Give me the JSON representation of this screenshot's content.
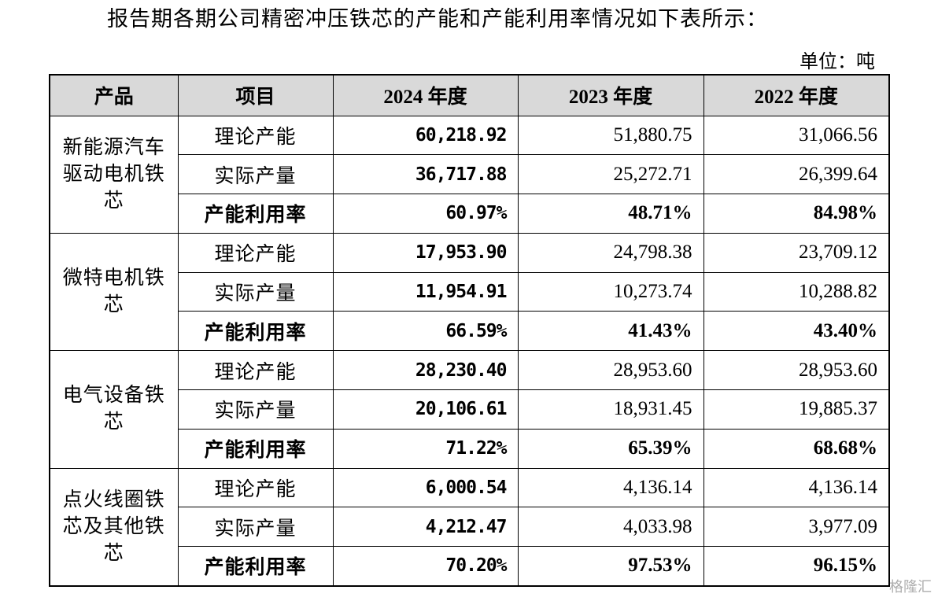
{
  "intro": "报告期各期公司精密冲压铁芯的产能和产能利用率情况如下表所示：",
  "unit": "单位：吨",
  "table": {
    "header": [
      "产品",
      "项目",
      "2024 年度",
      "2023 年度",
      "2022 年度"
    ],
    "groups": [
      {
        "product": "新能源汽车驱动电机铁芯",
        "rows": [
          [
            "理论产能",
            "60,218.92",
            "51,880.75",
            "31,066.56"
          ],
          [
            "实际产量",
            "36,717.88",
            "25,272.71",
            "26,399.64"
          ],
          [
            "产能利用率",
            "60.97%",
            "48.71%",
            "84.98%"
          ]
        ]
      },
      {
        "product": "微特电机铁芯",
        "rows": [
          [
            "理论产能",
            "17,953.90",
            "24,798.38",
            "23,709.12"
          ],
          [
            "实际产量",
            "11,954.91",
            "10,273.74",
            "10,288.82"
          ],
          [
            "产能利用率",
            "66.59%",
            "41.43%",
            "43.40%"
          ]
        ]
      },
      {
        "product": "电气设备铁芯",
        "rows": [
          [
            "理论产能",
            "28,230.40",
            "28,953.60",
            "28,953.60"
          ],
          [
            "实际产量",
            "20,106.61",
            "18,931.45",
            "19,885.37"
          ],
          [
            "产能利用率",
            "71.22%",
            "65.39%",
            "68.68%"
          ]
        ]
      },
      {
        "product": "点火线圈铁芯及其他铁芯",
        "rows": [
          [
            "理论产能",
            "6,000.54",
            "4,136.14",
            "4,136.14"
          ],
          [
            "实际产量",
            "4,212.47",
            "4,033.98",
            "3,977.09"
          ],
          [
            "产能利用率",
            "70.20%",
            "97.53%",
            "96.15%"
          ]
        ]
      }
    ]
  },
  "watermark": "格隆汇"
}
